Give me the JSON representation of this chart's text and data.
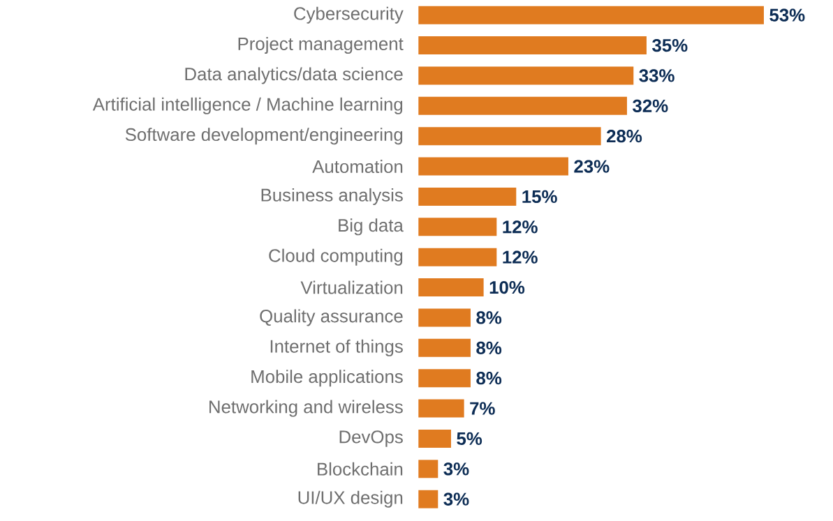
{
  "chart_data": {
    "type": "bar",
    "orientation": "horizontal",
    "color": "#e07b20",
    "categories": [
      "Cybersecurity",
      "Project management",
      "Data analytics/data science",
      "Artificial intelligence / Machine learning",
      "Software development/engineering",
      "Automation",
      "Business analysis",
      "Big data",
      "Cloud computing",
      "Virtualization",
      "Quality assurance",
      "Internet of things",
      "Mobile applications",
      "Networking and wireless",
      "DevOps",
      "Blockchain",
      "UI/UX design"
    ],
    "values": [
      53,
      35,
      33,
      32,
      28,
      23,
      15,
      12,
      12,
      10,
      8,
      8,
      8,
      7,
      5,
      3,
      3
    ],
    "value_labels": [
      "53%",
      "35%",
      "33%",
      "32%",
      "28%",
      "23%",
      "15%",
      "12%",
      "12%",
      "10%",
      "8%",
      "8%",
      "8%",
      "7%",
      "5%",
      "3%",
      "3%"
    ]
  }
}
